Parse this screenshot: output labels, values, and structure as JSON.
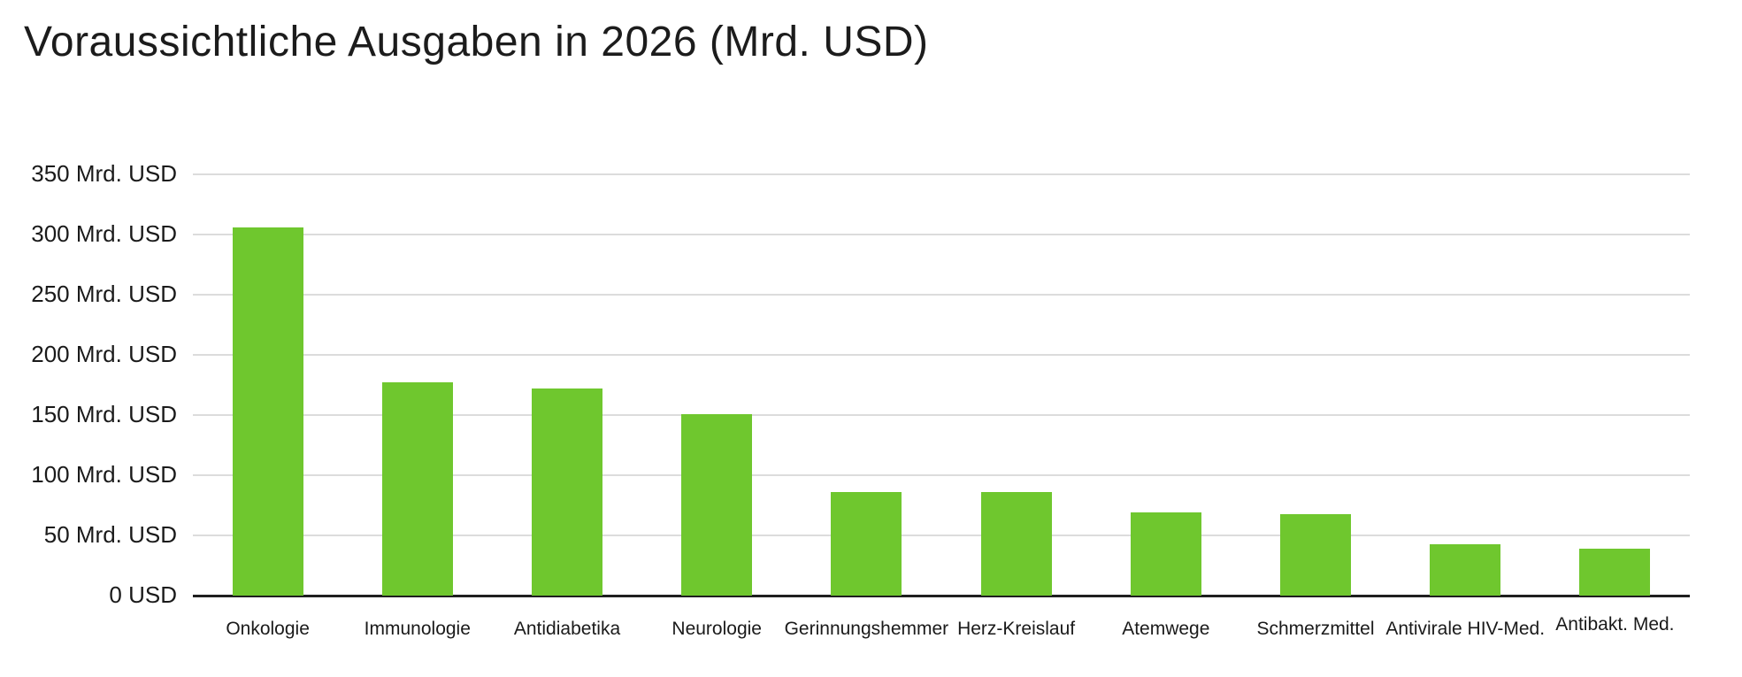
{
  "page": {
    "background": "#ffffff"
  },
  "chart_data": {
    "type": "bar",
    "title": "Voraussichtliche Ausgaben in 2026 (Mrd. USD)",
    "categories": [
      "Onkologie",
      "Immunologie",
      "Antidiabetika",
      "Neurologie",
      "Gerinnungshemmer",
      "Herz-Kreislauf",
      "Atemwege",
      "Schmerzmittel",
      "Antivirale HIV-Med.",
      "Antibakt. Med."
    ],
    "values": [
      306,
      177,
      172,
      151,
      86,
      86,
      69,
      68,
      43,
      39
    ],
    "unit": "Mrd. USD",
    "xlabel": "",
    "ylabel": "",
    "ylim": [
      0,
      350
    ],
    "ytick_step": 50,
    "ytick_labels": [
      "0 USD",
      "50 Mrd. USD",
      "100 Mrd. USD",
      "150 Mrd. USD",
      "200 Mrd. USD",
      "250 Mrd. USD",
      "300 Mrd. USD",
      "350 Mrd. USD"
    ],
    "grid": "horizontal",
    "legend": "none",
    "colors": {
      "bar": "#6FC72E",
      "gridline": "#DCDCDC",
      "axis_line": "#1F1F1F",
      "text": "#1A1A1A"
    }
  }
}
